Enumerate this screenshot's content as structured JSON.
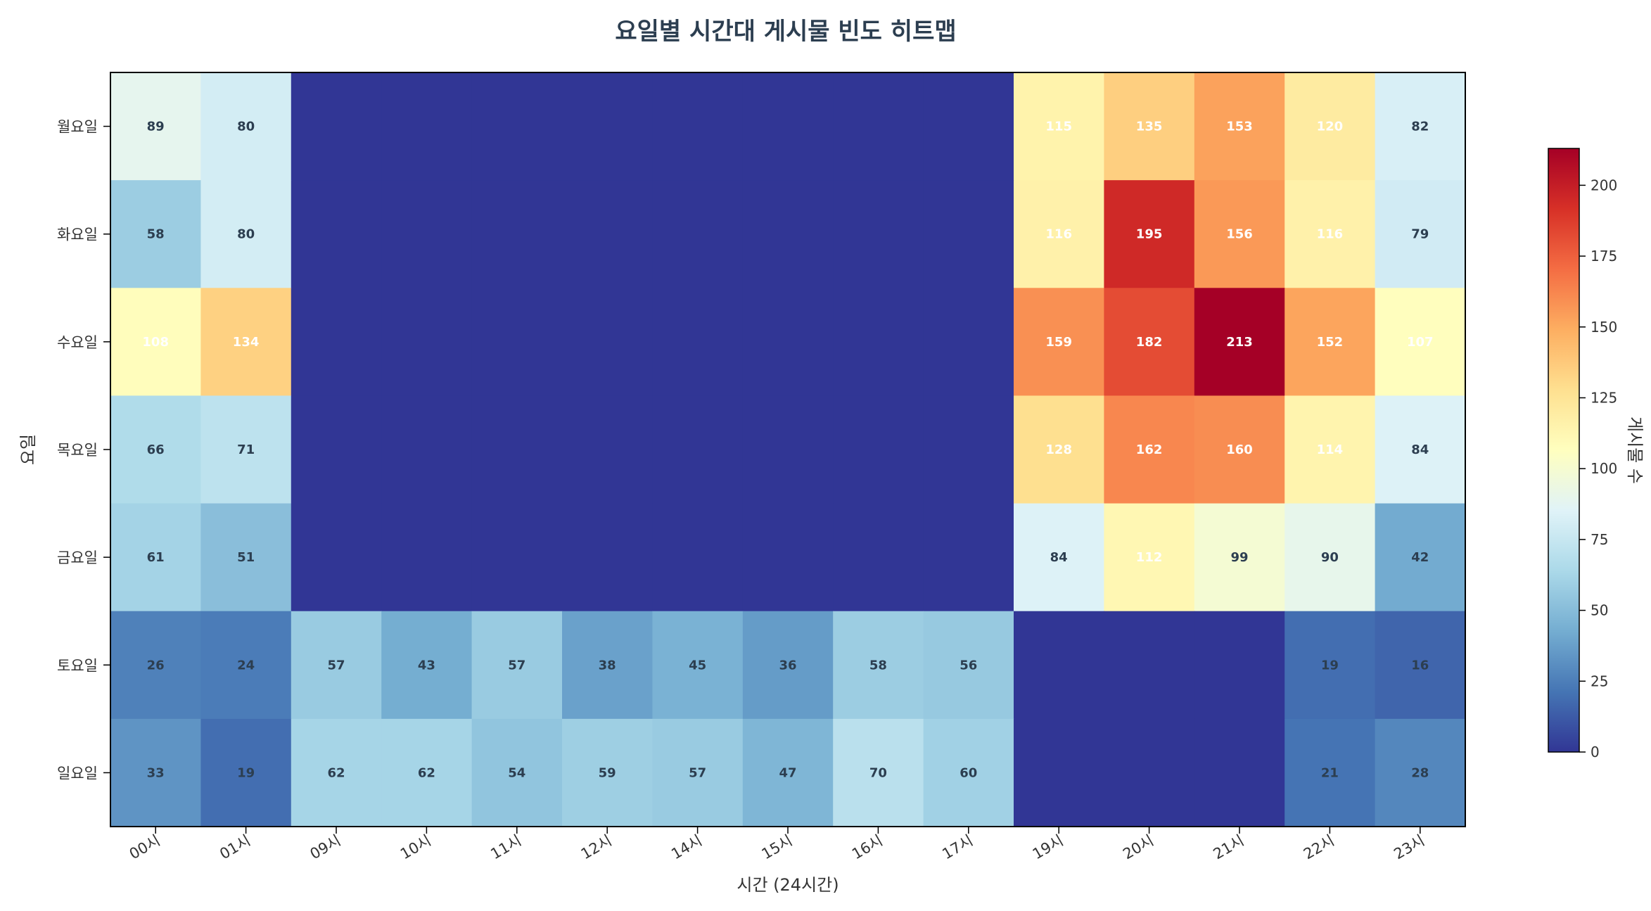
{
  "chart_data": {
    "type": "heatmap",
    "title": "요일별 시간대 게시물 빈도 히트맵",
    "xlabel": "시간 (24시간)",
    "ylabel": "요일",
    "colorbar_label": "게시물 수",
    "colormap": "RdYlBu_r",
    "x_categories": [
      "00시",
      "01시",
      "09시",
      "10시",
      "11시",
      "12시",
      "14시",
      "15시",
      "16시",
      "17시",
      "19시",
      "20시",
      "21시",
      "22시",
      "23시"
    ],
    "y_categories": [
      "월요일",
      "화요일",
      "수요일",
      "목요일",
      "금요일",
      "토요일",
      "일요일"
    ],
    "values": [
      [
        89,
        80,
        0,
        0,
        0,
        0,
        0,
        0,
        0,
        0,
        115,
        135,
        153,
        120,
        82
      ],
      [
        58,
        80,
        0,
        0,
        0,
        0,
        0,
        0,
        0,
        0,
        116,
        195,
        156,
        116,
        79
      ],
      [
        108,
        134,
        0,
        0,
        0,
        0,
        0,
        0,
        0,
        0,
        159,
        182,
        213,
        152,
        107
      ],
      [
        66,
        71,
        0,
        0,
        0,
        0,
        0,
        0,
        0,
        0,
        128,
        162,
        160,
        114,
        84
      ],
      [
        61,
        51,
        0,
        0,
        0,
        0,
        0,
        0,
        0,
        0,
        84,
        112,
        99,
        90,
        42
      ],
      [
        26,
        24,
        57,
        43,
        57,
        38,
        45,
        36,
        58,
        56,
        0,
        0,
        0,
        19,
        16
      ],
      [
        33,
        19,
        62,
        62,
        54,
        59,
        57,
        47,
        70,
        60,
        0,
        0,
        0,
        21,
        28
      ]
    ],
    "annotate_zero": false,
    "vmin": 0,
    "vmax": 213,
    "colorbar_ticks": [
      0,
      25,
      50,
      75,
      100,
      125,
      150,
      175,
      200
    ]
  }
}
